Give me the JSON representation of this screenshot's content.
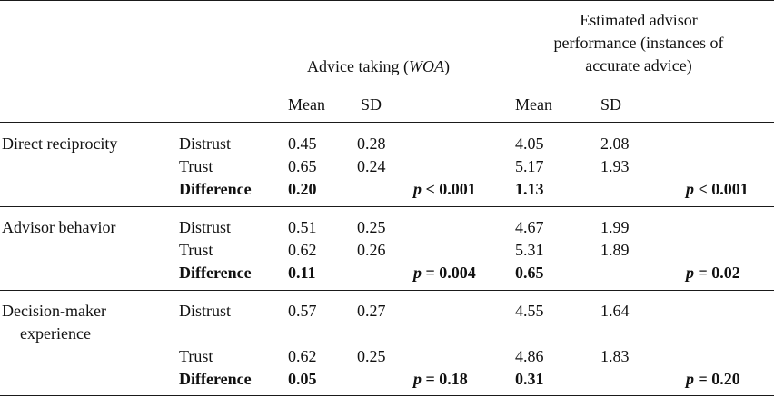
{
  "header": {
    "woa_group": {
      "prefix": "Advice taking (",
      "italic": "WOA",
      "suffix": ")"
    },
    "perf_group": [
      "Estimated advisor",
      "performance (instances of",
      "accurate advice)"
    ],
    "mean_label": "Mean",
    "sd_label": "SD"
  },
  "sections": [
    {
      "title": [
        "Direct reciprocity"
      ],
      "rows": [
        {
          "label": "Distrust",
          "woa_mean": "0.45",
          "woa_sd": "0.28",
          "perf_mean": "4.05",
          "perf_sd": "2.08"
        },
        {
          "label": "Trust",
          "woa_mean": "0.65",
          "woa_sd": "0.24",
          "perf_mean": "5.17",
          "perf_sd": "1.93"
        }
      ],
      "difference": {
        "label": "Difference",
        "woa_mean": "0.20",
        "woa_p": {
          "p": "p",
          "rest": " < 0.001"
        },
        "perf_mean": "1.13",
        "perf_p": {
          "p": "p",
          "rest": " < 0.001"
        }
      }
    },
    {
      "title": [
        "Advisor behavior"
      ],
      "rows": [
        {
          "label": "Distrust",
          "woa_mean": "0.51",
          "woa_sd": "0.25",
          "perf_mean": "4.67",
          "perf_sd": "1.99"
        },
        {
          "label": "Trust",
          "woa_mean": "0.62",
          "woa_sd": "0.26",
          "perf_mean": "5.31",
          "perf_sd": "1.89"
        }
      ],
      "difference": {
        "label": "Difference",
        "woa_mean": "0.11",
        "woa_p": {
          "p": "p",
          "rest": " = 0.004"
        },
        "perf_mean": "0.65",
        "perf_p": {
          "p": "p",
          "rest": " = 0.02"
        }
      }
    },
    {
      "title": [
        "Decision-maker",
        "experience"
      ],
      "rows": [
        {
          "label": "Distrust",
          "woa_mean": "0.57",
          "woa_sd": "0.27",
          "perf_mean": "4.55",
          "perf_sd": "1.64"
        },
        {
          "label": "Trust",
          "woa_mean": "0.62",
          "woa_sd": "0.25",
          "perf_mean": "4.86",
          "perf_sd": "1.83"
        }
      ],
      "difference": {
        "label": "Difference",
        "woa_mean": "0.05",
        "woa_p": {
          "p": "p",
          "rest": " = 0.18"
        },
        "perf_mean": "0.31",
        "perf_p": {
          "p": "p",
          "rest": " = 0.20"
        }
      }
    }
  ]
}
